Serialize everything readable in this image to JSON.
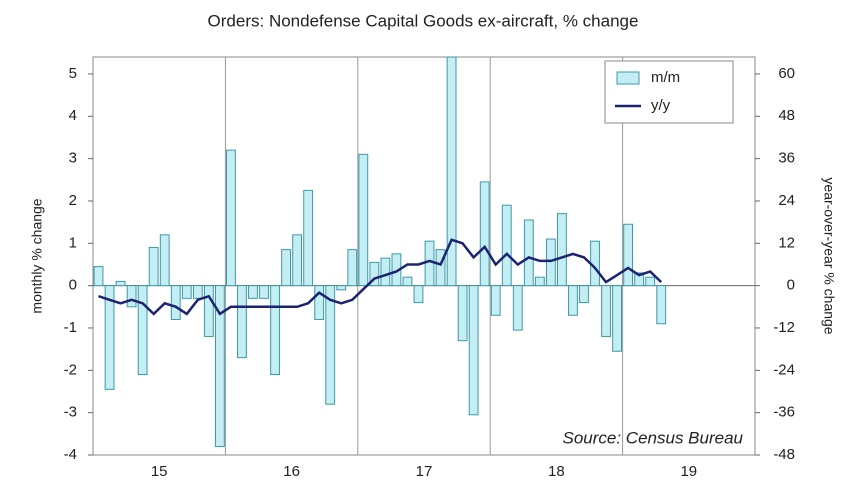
{
  "chart_data": {
    "type": "bar_line",
    "title": "Orders: Nondefense Capital Goods ex-aircraft, % change",
    "ylabel": "monthly % change",
    "y2label": "year-over-year % change",
    "annotation": "Source: Census Bureau",
    "categories": [
      null,
      null,
      null,
      null,
      null,
      null,
      "15",
      null,
      null,
      null,
      null,
      null,
      null,
      null,
      null,
      null,
      null,
      null,
      "16",
      null,
      null,
      null,
      null,
      null,
      null,
      null,
      null,
      null,
      null,
      null,
      "17",
      null,
      null,
      null,
      null,
      null,
      null,
      null,
      null,
      null,
      null,
      null,
      "18",
      null,
      null,
      null,
      null,
      null,
      null,
      null,
      null,
      null,
      null,
      null,
      "19",
      null,
      null,
      null,
      null,
      null
    ],
    "series": [
      {
        "name": "m/m",
        "kind": "bar",
        "color": "#c4eef3",
        "edge": "#3a9aa8",
        "values": [
          0.45,
          -2.45,
          0.1,
          -0.5,
          -2.1,
          0.9,
          1.2,
          -0.8,
          -0.3,
          -0.3,
          -1.2,
          -3.8,
          3.2,
          -1.7,
          -0.3,
          -0.3,
          -2.1,
          0.85,
          1.2,
          2.25,
          -0.8,
          -2.8,
          -0.1,
          0.85,
          3.1,
          0.55,
          0.65,
          0.75,
          0.2,
          -0.4,
          1.05,
          0.85,
          5.4,
          -1.3,
          -3.05,
          2.45,
          -0.7,
          1.9,
          -1.05,
          1.55,
          0.2,
          1.1,
          1.7,
          -0.7,
          -0.4,
          1.05,
          -1.2,
          -1.55,
          1.45,
          0.3,
          0.2,
          -0.9,
          null,
          null,
          null,
          null,
          null,
          null,
          null,
          null
        ]
      },
      {
        "name": "y/y",
        "kind": "line",
        "axis": "y2",
        "color": "#1c2372",
        "values": [
          -3,
          -4,
          -5,
          -4,
          -5,
          -8,
          -5,
          -6,
          -8,
          -4,
          -3,
          -8,
          -6,
          -6,
          -6,
          -6,
          -6,
          -6,
          -6,
          -5,
          -2,
          -4,
          -5,
          -4,
          -1,
          2,
          3,
          4,
          6,
          6,
          7,
          6,
          13,
          12,
          8,
          11,
          6,
          9,
          6,
          8,
          7,
          7,
          8,
          9,
          8,
          5,
          1,
          3,
          5,
          3,
          4,
          1,
          null,
          null,
          null,
          null,
          null,
          null,
          null,
          null
        ]
      }
    ],
    "ylim": [
      -4,
      5.4
    ],
    "yticks": [
      -4,
      -3,
      -2,
      -1,
      0,
      1,
      2,
      3,
      4,
      5
    ],
    "y2lim": [
      -48,
      64.8
    ],
    "y2ticks": [
      -48,
      -36,
      -24,
      -12,
      0,
      12,
      24,
      36,
      48,
      60
    ],
    "legend": "top-right"
  }
}
